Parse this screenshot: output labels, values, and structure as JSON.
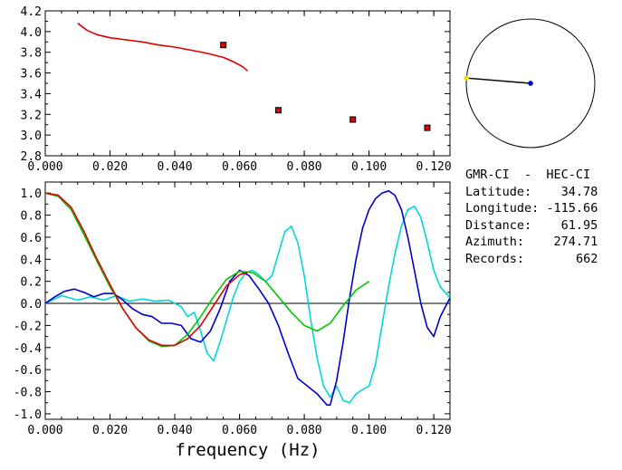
{
  "chart_data": [
    {
      "type": "scatter",
      "xlim": [
        0.0,
        0.125
      ],
      "ylim": [
        2.8,
        4.2
      ],
      "x_ticks": [
        "0.000",
        "0.020",
        "0.040",
        "0.060",
        "0.080",
        "0.100",
        "0.120"
      ],
      "y_ticks": [
        "2.8",
        "3.0",
        "3.2",
        "3.4",
        "3.6",
        "3.8",
        "4.0",
        "4.2"
      ],
      "title": "",
      "xlabel": "",
      "ylabel": "",
      "grid": false,
      "series": [
        {
          "type": "line",
          "color": "#e00000",
          "x": [
            0.01,
            0.013,
            0.016,
            0.02,
            0.025,
            0.03,
            0.035,
            0.04,
            0.045,
            0.05,
            0.055,
            0.058,
            0.061,
            0.0625
          ],
          "y": [
            4.08,
            4.01,
            3.97,
            3.94,
            3.92,
            3.9,
            3.87,
            3.85,
            3.82,
            3.79,
            3.75,
            3.71,
            3.66,
            3.62
          ]
        },
        {
          "type": "points",
          "color": "#e00000",
          "x": [
            0.055,
            0.072,
            0.095,
            0.118
          ],
          "y": [
            3.87,
            3.24,
            3.15,
            3.07
          ]
        }
      ]
    },
    {
      "type": "line",
      "xlim": [
        0.0,
        0.125
      ],
      "ylim": [
        -1.05,
        1.1
      ],
      "x_ticks": [
        "0.000",
        "0.020",
        "0.040",
        "0.060",
        "0.080",
        "0.100",
        "0.120"
      ],
      "y_ticks": [
        "-1.0",
        "-0.8",
        "-0.6",
        "-0.4",
        "-0.2",
        "0.0",
        "0.2",
        "0.4",
        "0.6",
        "0.8",
        "1.0"
      ],
      "title": "",
      "xlabel": "frequency (Hz)",
      "ylabel": "",
      "grid": false,
      "zero_line": true,
      "series": [
        {
          "color": "#00d8d8",
          "x": [
            0.0,
            0.005,
            0.01,
            0.014,
            0.018,
            0.022,
            0.026,
            0.03,
            0.034,
            0.038,
            0.042,
            0.044,
            0.046,
            0.048,
            0.05,
            0.052,
            0.054,
            0.056,
            0.058,
            0.06,
            0.062,
            0.064,
            0.066,
            0.068,
            0.07,
            0.072,
            0.074,
            0.076,
            0.078,
            0.08,
            0.082,
            0.084,
            0.086,
            0.088,
            0.09,
            0.092,
            0.094,
            0.096,
            0.098,
            0.1,
            0.102,
            0.104,
            0.106,
            0.108,
            0.11,
            0.112,
            0.114,
            0.116,
            0.118,
            0.12,
            0.122,
            0.125
          ],
          "y": [
            0.0,
            0.07,
            0.03,
            0.06,
            0.03,
            0.07,
            0.02,
            0.04,
            0.02,
            0.03,
            -0.03,
            -0.12,
            -0.08,
            -0.25,
            -0.45,
            -0.52,
            -0.35,
            -0.15,
            0.05,
            0.2,
            0.28,
            0.3,
            0.26,
            0.2,
            0.25,
            0.45,
            0.65,
            0.7,
            0.55,
            0.25,
            -0.15,
            -0.5,
            -0.75,
            -0.85,
            -0.75,
            -0.88,
            -0.9,
            -0.82,
            -0.78,
            -0.75,
            -0.55,
            -0.2,
            0.15,
            0.45,
            0.7,
            0.85,
            0.88,
            0.78,
            0.55,
            0.3,
            0.15,
            0.05
          ]
        },
        {
          "color": "#0000cc",
          "x": [
            0.0,
            0.003,
            0.006,
            0.009,
            0.012,
            0.015,
            0.018,
            0.021,
            0.024,
            0.027,
            0.03,
            0.033,
            0.036,
            0.039,
            0.042,
            0.045,
            0.048,
            0.051,
            0.054,
            0.057,
            0.06,
            0.063,
            0.066,
            0.069,
            0.072,
            0.075,
            0.078,
            0.081,
            0.084,
            0.087,
            0.088,
            0.09,
            0.092,
            0.094,
            0.096,
            0.098,
            0.1,
            0.102,
            0.104,
            0.106,
            0.108,
            0.11,
            0.112,
            0.114,
            0.116,
            0.118,
            0.12,
            0.122,
            0.125
          ],
          "y": [
            0.0,
            0.06,
            0.11,
            0.13,
            0.1,
            0.06,
            0.09,
            0.09,
            0.03,
            -0.05,
            -0.1,
            -0.12,
            -0.18,
            -0.18,
            -0.2,
            -0.32,
            -0.35,
            -0.25,
            -0.05,
            0.2,
            0.3,
            0.25,
            0.13,
            0.0,
            -0.2,
            -0.45,
            -0.68,
            -0.75,
            -0.82,
            -0.92,
            -0.92,
            -0.7,
            -0.35,
            0.05,
            0.4,
            0.68,
            0.85,
            0.95,
            1.0,
            1.02,
            0.98,
            0.85,
            0.6,
            0.3,
            0.0,
            -0.22,
            -0.3,
            -0.12,
            0.05
          ]
        },
        {
          "color": "#00c800",
          "x": [
            0.0,
            0.004,
            0.008,
            0.012,
            0.016,
            0.02,
            0.024,
            0.028,
            0.032,
            0.036,
            0.04,
            0.044,
            0.048,
            0.052,
            0.056,
            0.06,
            0.064,
            0.068,
            0.072,
            0.076,
            0.08,
            0.084,
            0.088,
            0.092,
            0.096,
            0.1
          ],
          "y": [
            1.0,
            0.97,
            0.85,
            0.62,
            0.38,
            0.15,
            -0.05,
            -0.22,
            -0.34,
            -0.39,
            -0.38,
            -0.28,
            -0.12,
            0.06,
            0.22,
            0.29,
            0.28,
            0.2,
            0.06,
            -0.08,
            -0.2,
            -0.25,
            -0.18,
            -0.02,
            0.12,
            0.2
          ]
        },
        {
          "color": "#e00000",
          "x": [
            0.0,
            0.004,
            0.008,
            0.012,
            0.016,
            0.02,
            0.024,
            0.028,
            0.032,
            0.036,
            0.04,
            0.044,
            0.048,
            0.052,
            0.056,
            0.06,
            0.0625
          ],
          "y": [
            1.0,
            0.98,
            0.87,
            0.65,
            0.4,
            0.17,
            -0.05,
            -0.22,
            -0.33,
            -0.38,
            -0.38,
            -0.32,
            -0.2,
            -0.02,
            0.16,
            0.26,
            0.28
          ]
        }
      ]
    },
    {
      "type": "diagram",
      "azimuth_deg": 274.71,
      "circle_color": "#000000",
      "line_color": "#000000",
      "center_marker_color": "#0000aa",
      "station_marker_color": "#e8e000"
    }
  ],
  "info": {
    "rows": [
      {
        "label": "GMR-CI  -  HEC-CI",
        "value": ""
      },
      {
        "label": "Latitude:",
        "value": "34.78"
      },
      {
        "label": "Longitude:",
        "value": "-115.66"
      },
      {
        "label": "Distance:",
        "value": "61.95"
      },
      {
        "label": "Azimuth:",
        "value": "274.71"
      },
      {
        "label": "Records:",
        "value": "662"
      }
    ]
  }
}
